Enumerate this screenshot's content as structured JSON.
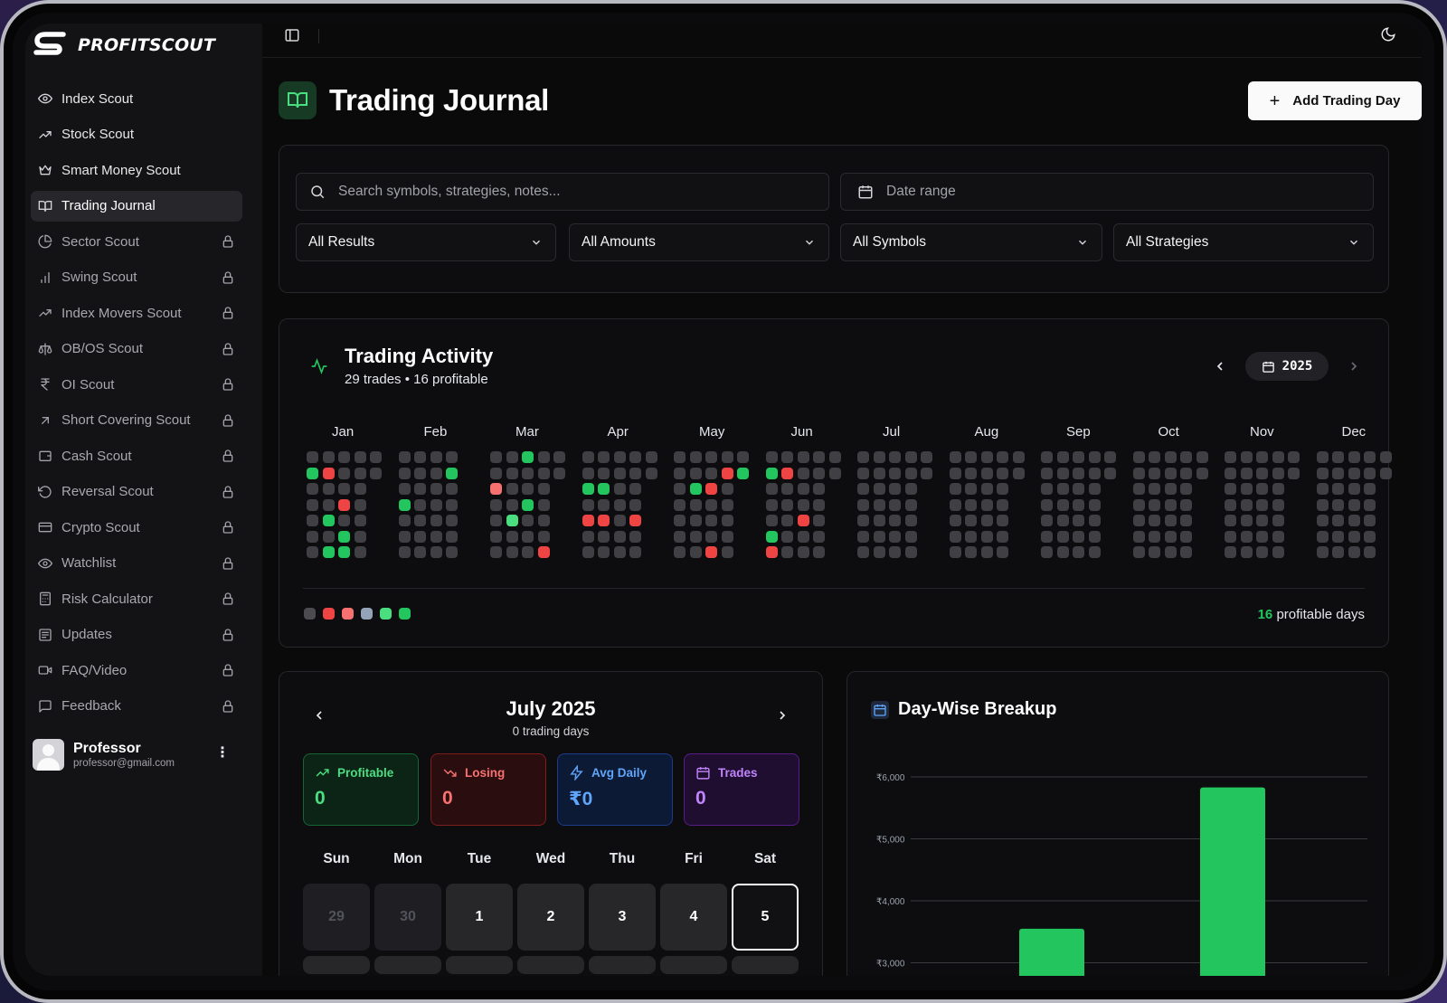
{
  "brand": {
    "name": "PROFITSCOUT"
  },
  "sidebar": {
    "items": [
      {
        "label": "Index Scout",
        "icon": "eye-icon",
        "locked": false,
        "active": false
      },
      {
        "label": "Stock Scout",
        "icon": "trending-up-icon",
        "locked": false,
        "active": false
      },
      {
        "label": "Smart Money Scout",
        "icon": "crown-icon",
        "locked": false,
        "active": false
      },
      {
        "label": "Trading Journal",
        "icon": "book-open-icon",
        "locked": false,
        "active": true
      },
      {
        "label": "Sector Scout",
        "icon": "pie-chart-icon",
        "locked": true,
        "active": false
      },
      {
        "label": "Swing Scout",
        "icon": "bar-chart-icon",
        "locked": true,
        "active": false
      },
      {
        "label": "Index Movers Scout",
        "icon": "trending-up-icon",
        "locked": true,
        "active": false
      },
      {
        "label": "OB/OS Scout",
        "icon": "scale-icon",
        "locked": true,
        "active": false
      },
      {
        "label": "OI Scout",
        "icon": "rupee-icon",
        "locked": true,
        "active": false
      },
      {
        "label": "Short Covering Scout",
        "icon": "arrow-up-right-icon",
        "locked": true,
        "active": false
      },
      {
        "label": "Cash Scout",
        "icon": "wallet-icon",
        "locked": true,
        "active": false
      },
      {
        "label": "Reversal Scout",
        "icon": "rotate-ccw-icon",
        "locked": true,
        "active": false
      },
      {
        "label": "Crypto Scout",
        "icon": "credit-card-icon",
        "locked": true,
        "active": false
      },
      {
        "label": "Watchlist",
        "icon": "eye-icon",
        "locked": true,
        "active": false
      },
      {
        "label": "Risk Calculator",
        "icon": "calculator-icon",
        "locked": true,
        "active": false
      },
      {
        "label": "Updates",
        "icon": "newspaper-icon",
        "locked": true,
        "active": false
      },
      {
        "label": "FAQ/Video",
        "icon": "video-icon",
        "locked": true,
        "active": false
      },
      {
        "label": "Feedback",
        "icon": "message-square-icon",
        "locked": true,
        "active": false
      }
    ],
    "user": {
      "name": "Professor",
      "email": "professor@gmail.com"
    }
  },
  "header": {
    "title": "Trading Journal",
    "add_button_label": "Add Trading Day"
  },
  "filters": {
    "search_placeholder": "Search symbols, strategies, notes...",
    "date_placeholder": "Date range",
    "results": "All Results",
    "amounts": "All Amounts",
    "symbols": "All Symbols",
    "strategies": "All Strategies"
  },
  "activity": {
    "title": "Trading Activity",
    "subtitle": "29 trades • 16 profitable",
    "year": "2025",
    "months": [
      "Jan",
      "Feb",
      "Mar",
      "Apr",
      "May",
      "Jun",
      "Jul",
      "Aug",
      "Sep",
      "Oct",
      "Nov",
      "Dec"
    ],
    "marked_days": [
      {
        "month": 0,
        "week": 0,
        "dow": 1,
        "level": "profit"
      },
      {
        "month": 0,
        "week": 1,
        "dow": 1,
        "level": "loss"
      },
      {
        "month": 0,
        "week": 2,
        "dow": 3,
        "level": "loss"
      },
      {
        "month": 0,
        "week": 1,
        "dow": 4,
        "level": "profit"
      },
      {
        "month": 0,
        "week": 2,
        "dow": 5,
        "level": "profit"
      },
      {
        "month": 0,
        "week": 1,
        "dow": 6,
        "level": "profit"
      },
      {
        "month": 0,
        "week": 2,
        "dow": 6,
        "level": "profit"
      },
      {
        "month": 1,
        "week": 3,
        "dow": 1,
        "level": "profit"
      },
      {
        "month": 1,
        "week": 0,
        "dow": 3,
        "level": "profit"
      },
      {
        "month": 2,
        "week": 2,
        "dow": 0,
        "level": "profit"
      },
      {
        "month": 2,
        "week": 0,
        "dow": 2,
        "level": "loss-light"
      },
      {
        "month": 2,
        "week": 2,
        "dow": 3,
        "level": "profit"
      },
      {
        "month": 2,
        "week": 1,
        "dow": 4,
        "level": "profit-light"
      },
      {
        "month": 2,
        "week": 3,
        "dow": 6,
        "level": "loss"
      },
      {
        "month": 3,
        "week": 0,
        "dow": 2,
        "level": "profit"
      },
      {
        "month": 3,
        "week": 1,
        "dow": 2,
        "level": "profit"
      },
      {
        "month": 3,
        "week": 0,
        "dow": 4,
        "level": "loss"
      },
      {
        "month": 3,
        "week": 1,
        "dow": 4,
        "level": "loss"
      },
      {
        "month": 3,
        "week": 3,
        "dow": 4,
        "level": "loss"
      },
      {
        "month": 4,
        "week": 3,
        "dow": 1,
        "level": "loss"
      },
      {
        "month": 4,
        "week": 4,
        "dow": 1,
        "level": "profit"
      },
      {
        "month": 4,
        "week": 1,
        "dow": 2,
        "level": "profit"
      },
      {
        "month": 4,
        "week": 2,
        "dow": 2,
        "level": "loss"
      },
      {
        "month": 4,
        "week": 2,
        "dow": 6,
        "level": "loss"
      },
      {
        "month": 5,
        "week": 0,
        "dow": 1,
        "level": "profit"
      },
      {
        "month": 5,
        "week": 1,
        "dow": 1,
        "level": "loss"
      },
      {
        "month": 5,
        "week": 2,
        "dow": 4,
        "level": "loss"
      },
      {
        "month": 5,
        "week": 0,
        "dow": 5,
        "level": "profit"
      },
      {
        "month": 5,
        "week": 0,
        "dow": 6,
        "level": "loss"
      }
    ],
    "legend_colors": [
      "#4b4b50",
      "#ef4444",
      "#f87171",
      "#94a3b8",
      "#4ade80",
      "#22c55e"
    ],
    "profitable_days_count": "16",
    "profitable_days_label": "profitable days"
  },
  "calendar": {
    "month_title": "July 2025",
    "trading_days": "0 trading days",
    "stats": [
      {
        "label": "Profitable",
        "value": "0",
        "icon": "trending-up-icon"
      },
      {
        "label": "Losing",
        "value": "0",
        "icon": "trending-down-icon"
      },
      {
        "label": "Avg Daily",
        "value": "₹0",
        "icon": "zap-icon"
      },
      {
        "label": "Trades",
        "value": "0",
        "icon": "calendar-icon"
      }
    ],
    "weekdays": [
      "Sun",
      "Mon",
      "Tue",
      "Wed",
      "Thu",
      "Fri",
      "Sat"
    ],
    "first_row": [
      "29",
      "30",
      "1",
      "2",
      "3",
      "4",
      "5"
    ],
    "today": "5"
  },
  "breakup": {
    "title": "Day-Wise Breakup",
    "chart_data": {
      "type": "bar",
      "ylabels": [
        "₹6,000",
        "₹5,000",
        "₹4,000",
        "₹3,000"
      ],
      "bars": [
        {
          "value": 3550
        },
        {
          "value": 5830
        }
      ],
      "ylim": [
        3000,
        6000
      ]
    }
  },
  "colors": {
    "accent_green": "#22c55e",
    "loss_red": "#ef4444",
    "panel_bg": "#0d0d0f",
    "border": "#26262b"
  }
}
